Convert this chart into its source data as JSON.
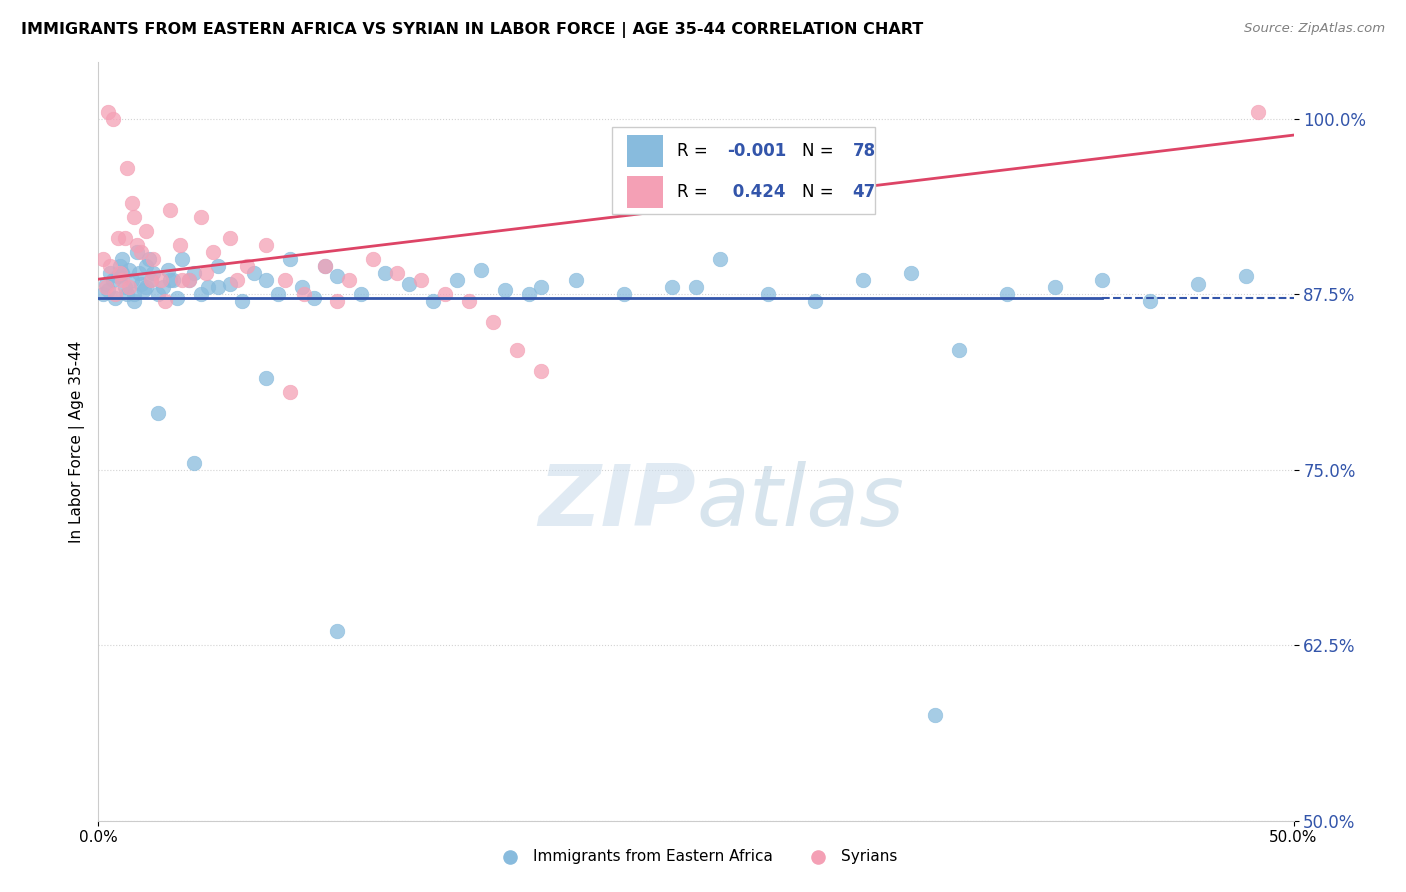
{
  "title": "IMMIGRANTS FROM EASTERN AFRICA VS SYRIAN IN LABOR FORCE | AGE 35-44 CORRELATION CHART",
  "source": "Source: ZipAtlas.com",
  "ylabel": "In Labor Force | Age 35-44",
  "yticks": [
    50.0,
    62.5,
    75.0,
    87.5,
    100.0
  ],
  "ytick_labels": [
    "50.0%",
    "62.5%",
    "75.0%",
    "87.5%",
    "100.0%"
  ],
  "xlim": [
    0.0,
    50.0
  ],
  "ylim": [
    50.0,
    104.0
  ],
  "blue_R": "-0.001",
  "blue_N": "78",
  "pink_R": "0.424",
  "pink_N": "47",
  "blue_color": "#88bbdd",
  "pink_color": "#f4a0b5",
  "blue_line_color": "#3355aa",
  "pink_line_color": "#dd4466",
  "legend_label_blue": "Immigrants from Eastern Africa",
  "legend_label_pink": "Syrians",
  "watermark_zip": "ZIP",
  "watermark_atlas": "atlas",
  "blue_line_solid_end": 42.0,
  "hline_y": 87.5,
  "blue_scatter_x": [
    0.2,
    0.3,
    0.4,
    0.5,
    0.6,
    0.7,
    0.8,
    0.9,
    1.0,
    1.1,
    1.2,
    1.3,
    1.4,
    1.5,
    1.6,
    1.7,
    1.8,
    1.9,
    2.0,
    2.1,
    2.2,
    2.3,
    2.5,
    2.7,
    2.9,
    3.1,
    3.3,
    3.5,
    3.8,
    4.0,
    4.3,
    4.6,
    5.0,
    5.5,
    6.0,
    6.5,
    7.0,
    7.5,
    8.0,
    8.5,
    9.0,
    9.5,
    10.0,
    11.0,
    12.0,
    13.0,
    14.0,
    15.0,
    16.0,
    17.0,
    18.5,
    20.0,
    22.0,
    24.0,
    26.0,
    28.0,
    30.0,
    32.0,
    34.0,
    36.0,
    38.0,
    40.0,
    42.0,
    44.0,
    46.0,
    48.0,
    1.0,
    1.5,
    2.0,
    2.5,
    3.0,
    4.0,
    5.0,
    7.0,
    10.0,
    18.0,
    25.0,
    35.0
  ],
  "blue_scatter_y": [
    87.5,
    88.2,
    87.8,
    89.0,
    88.5,
    87.2,
    88.8,
    89.5,
    90.0,
    88.0,
    87.5,
    89.2,
    88.5,
    87.0,
    90.5,
    89.0,
    88.2,
    87.8,
    89.5,
    90.0,
    88.5,
    89.0,
    87.5,
    88.0,
    89.2,
    88.5,
    87.2,
    90.0,
    88.5,
    89.0,
    87.5,
    88.0,
    89.5,
    88.2,
    87.0,
    89.0,
    88.5,
    87.5,
    90.0,
    88.0,
    87.2,
    89.5,
    88.8,
    87.5,
    89.0,
    88.2,
    87.0,
    88.5,
    89.2,
    87.8,
    88.0,
    88.5,
    87.5,
    88.0,
    90.0,
    87.5,
    87.0,
    88.5,
    89.0,
    83.5,
    87.5,
    88.0,
    88.5,
    87.0,
    88.2,
    88.8,
    89.0,
    87.5,
    88.0,
    79.0,
    88.5,
    75.5,
    88.0,
    81.5,
    63.5,
    87.5,
    88.0,
    57.5
  ],
  "pink_scatter_x": [
    0.2,
    0.4,
    0.6,
    0.8,
    1.0,
    1.2,
    1.4,
    1.6,
    1.8,
    2.0,
    2.3,
    2.6,
    3.0,
    3.4,
    3.8,
    4.3,
    4.8,
    5.5,
    6.2,
    7.0,
    7.8,
    8.6,
    9.5,
    10.5,
    11.5,
    12.5,
    13.5,
    14.5,
    15.5,
    16.5,
    17.5,
    18.5,
    0.3,
    0.5,
    0.7,
    0.9,
    1.1,
    1.3,
    1.5,
    2.2,
    2.8,
    3.5,
    4.5,
    5.8,
    8.0,
    10.0,
    48.5
  ],
  "pink_scatter_y": [
    90.0,
    100.5,
    100.0,
    91.5,
    88.5,
    96.5,
    94.0,
    91.0,
    90.5,
    92.0,
    90.0,
    88.5,
    93.5,
    91.0,
    88.5,
    93.0,
    90.5,
    91.5,
    89.5,
    91.0,
    88.5,
    87.5,
    89.5,
    88.5,
    90.0,
    89.0,
    88.5,
    87.5,
    87.0,
    85.5,
    83.5,
    82.0,
    88.0,
    89.5,
    87.5,
    89.0,
    91.5,
    88.0,
    93.0,
    88.5,
    87.0,
    88.5,
    89.0,
    88.5,
    80.5,
    87.0,
    100.5
  ]
}
